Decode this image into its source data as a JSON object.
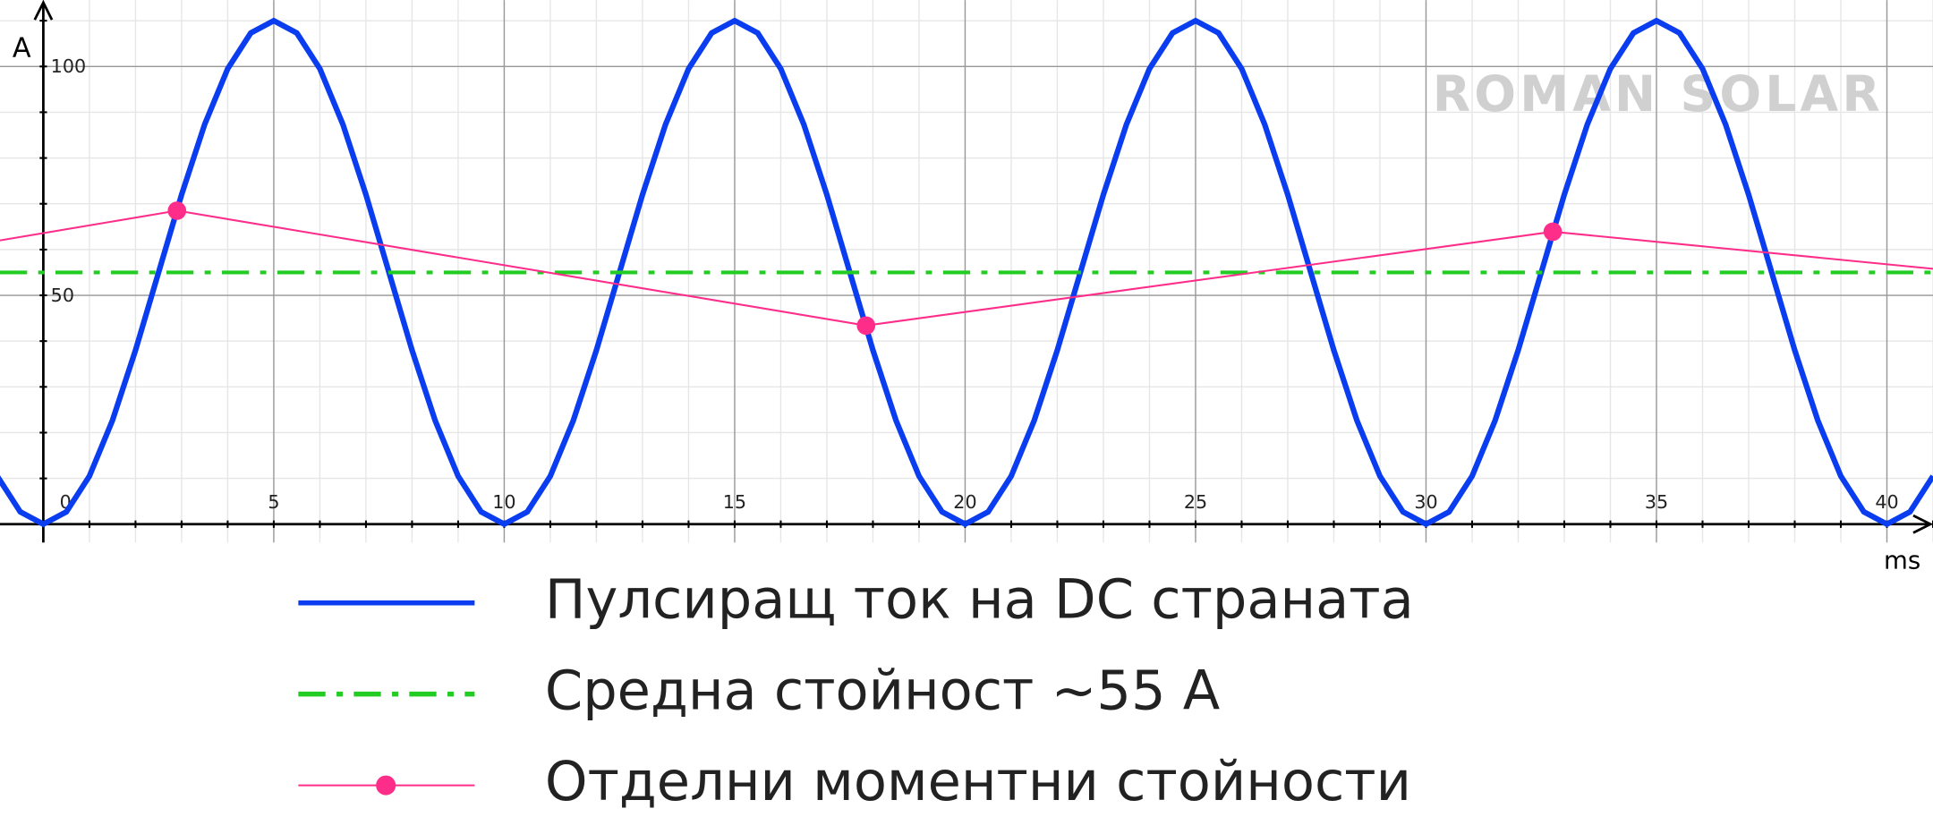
{
  "chart_data": {
    "type": "line",
    "x_label": "ms",
    "y_label": "A",
    "watermark": "ROMAN SOLAR",
    "xlim": [
      -0.94,
      41
    ],
    "ylim": [
      -4,
      114.5
    ],
    "xticks": [
      0,
      5,
      10,
      15,
      20,
      25,
      30,
      35,
      40
    ],
    "yticks": [
      50,
      100
    ],
    "x_minor_step": 1,
    "y_minor_step": 10,
    "grid": true,
    "series": [
      {
        "name": "Пулсиращ ток на DC страната",
        "color": "#0a3cf0",
        "style": "solid",
        "x": [
          -1,
          -0.5,
          0,
          0.5,
          1,
          1.5,
          2,
          2.5,
          3,
          3.5,
          4,
          4.5,
          5,
          5.5,
          6,
          6.5,
          7,
          7.5,
          8,
          8.5,
          9,
          9.5,
          10,
          10.5,
          11,
          11.5,
          12,
          12.5,
          13,
          13.5,
          14,
          14.5,
          15,
          15.5,
          16,
          16.5,
          17,
          17.5,
          18,
          18.5,
          19,
          19.5,
          20,
          20.5,
          21,
          21.5,
          22,
          22.5,
          23,
          23.5,
          24,
          24.5,
          25,
          25.5,
          26,
          26.5,
          27,
          27.5,
          28,
          28.5,
          29,
          29.5,
          30,
          30.5,
          31,
          31.5,
          32,
          32.5,
          33,
          33.5,
          34,
          34.5,
          35,
          35.5,
          36,
          36.5,
          37,
          37.5,
          38,
          38.5,
          39,
          39.5,
          40,
          40.5,
          41
        ],
        "values": [
          10.5,
          2.69,
          0,
          2.69,
          10.5,
          22.68,
          38,
          55,
          72,
          87.33,
          99.5,
          107.31,
          110,
          107.31,
          99.5,
          87.33,
          72,
          55,
          38,
          22.68,
          10.5,
          2.69,
          0,
          2.69,
          10.5,
          22.68,
          38,
          55,
          72,
          87.33,
          99.5,
          107.31,
          110,
          107.31,
          99.5,
          87.33,
          72,
          55,
          38,
          22.68,
          10.5,
          2.69,
          0,
          2.69,
          10.5,
          22.68,
          38,
          55,
          72,
          87.33,
          99.5,
          107.31,
          110,
          107.31,
          99.5,
          87.33,
          72,
          55,
          38,
          22.68,
          10.5,
          2.69,
          0,
          2.69,
          10.5,
          22.68,
          38,
          55,
          72,
          87.33,
          99.5,
          107.31,
          110,
          107.31,
          99.5,
          87.33,
          72,
          55,
          38,
          22.68,
          10.5,
          2.69,
          0,
          2.69,
          10.5
        ]
      },
      {
        "name": "Средна стойност ~55 A",
        "color": "#22cc22",
        "style": "dashdot",
        "x": [
          -0.94,
          41
        ],
        "values": [
          55,
          55
        ]
      },
      {
        "name": "Отделни моментни стойности",
        "color": "#ff2d8a",
        "style": "thin",
        "x": [
          -0.94,
          2.9,
          17.85,
          32.75,
          41
        ],
        "values": [
          62,
          68.5,
          43.4,
          63.9,
          55.8
        ],
        "markers": [
          false,
          true,
          true,
          true,
          false
        ]
      }
    ]
  }
}
